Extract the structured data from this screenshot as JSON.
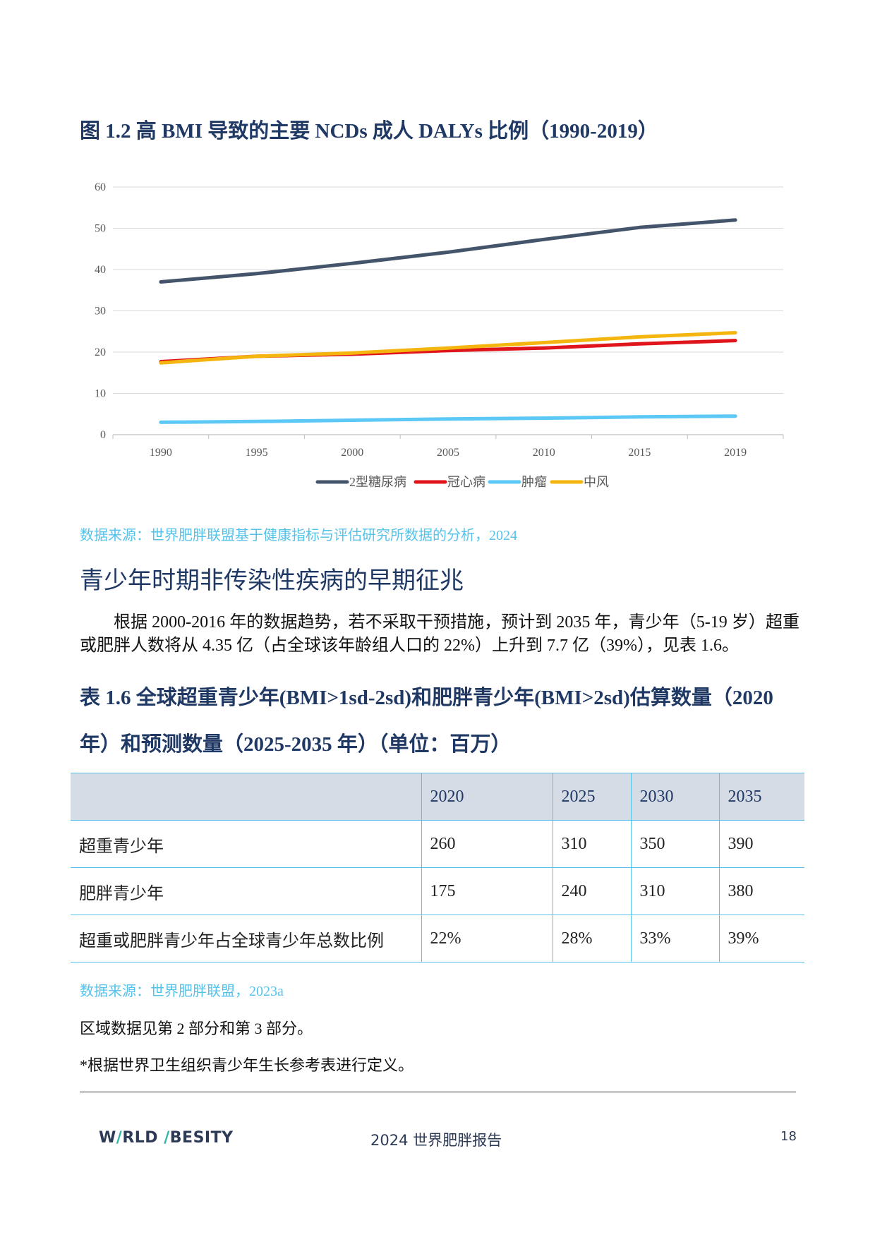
{
  "figure": {
    "title": "图  1.2  高 BMI 导致的主要 NCDs 成人 DALYs 比例（1990-2019）",
    "source": "数据来源：世界肥胖联盟基于健康指标与评估研究所数据的分析，2024"
  },
  "chart_data": {
    "type": "line",
    "title": "",
    "xlabel": "",
    "ylabel": "",
    "x": [
      "1990",
      "1995",
      "2000",
      "2005",
      "2010",
      "2015",
      "2019"
    ],
    "ylim": [
      0,
      60
    ],
    "yticks": [
      0,
      10,
      20,
      30,
      40,
      50,
      60
    ],
    "grid": true,
    "legend": "bottom",
    "series": [
      {
        "name": "2型糖尿病",
        "color": "#44546a",
        "values": [
          37,
          39,
          41.5,
          44.2,
          47.3,
          50.2,
          52
        ]
      },
      {
        "name": "冠心病",
        "color": "#e0141b",
        "values": [
          17.7,
          19,
          19.5,
          20.4,
          21,
          22,
          22.8
        ]
      },
      {
        "name": "肿瘤",
        "color": "#5bc8f5",
        "values": [
          3,
          3.2,
          3.5,
          3.8,
          4,
          4.3,
          4.5
        ]
      },
      {
        "name": "中风",
        "color": "#f5b50f",
        "values": [
          17.4,
          19,
          19.8,
          21,
          22.3,
          23.7,
          24.7
        ]
      }
    ]
  },
  "section": {
    "heading": "青少年时期非传染性疾病的早期征兆",
    "paragraph": "根据 2000-2016 年的数据趋势，若不采取干预措施，预计到 2035 年，青少年（5-19 岁）超重或肥胖人数将从 4.35 亿（占全球该年龄组人口的 22%）上升到 7.7 亿（39%），见表 1.6。"
  },
  "table": {
    "title": "表  1.6  全球超重青少年(BMI>1sd-2sd)和肥胖青少年(BMI>2sd)估算数量（2020 年）和预测数量（2025-2035 年）（单位：百万）",
    "header": [
      "",
      "2020",
      "2025",
      "2030",
      "2035"
    ],
    "rows": [
      [
        "超重青少年",
        "260",
        "310",
        "350",
        "390"
      ],
      [
        "肥胖青少年",
        "175",
        "240",
        "310",
        "380"
      ],
      [
        "超重或肥胖青少年占全球青少年总数比例",
        "22%",
        "28%",
        "33%",
        "39%"
      ]
    ],
    "source": "数据来源：世界肥胖联盟，2023a"
  },
  "notes": {
    "regional": "区域数据见第 2 部分和第 3 部分。",
    "definition": "*根据世界卫生组织青少年生长参考表进行定义。"
  },
  "footer": {
    "logo_part1": "W",
    "logo_slash1": "/",
    "logo_part2": "RLD ",
    "logo_slash2": "/",
    "logo_part3": "BESITY",
    "center": "2024 世界肥胖报告",
    "page": "18"
  }
}
